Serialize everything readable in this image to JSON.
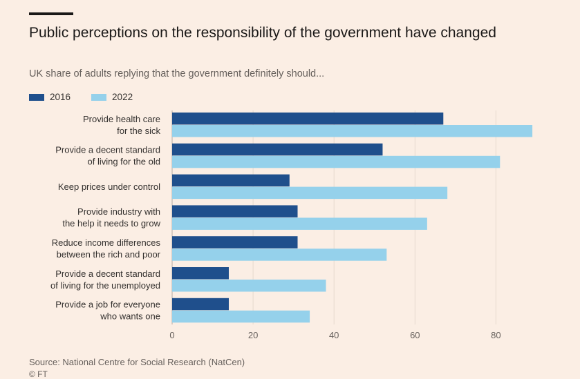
{
  "chart_data": {
    "type": "bar",
    "orientation": "horizontal",
    "title": "Public perceptions on the responsibility of the government have changed",
    "subtitle": "UK share of adults replying that the government definitely should...",
    "categories": [
      [
        "Provide health care",
        "for the sick"
      ],
      [
        "Provide a decent standard",
        "of living for the old"
      ],
      [
        "Keep prices under control"
      ],
      [
        "Provide industry with",
        "the help it needs to grow"
      ],
      [
        "Reduce income differences",
        "between the rich and poor"
      ],
      [
        "Provide a decent standard",
        "of living for the unemployed"
      ],
      [
        "Provide a job for everyone",
        "who wants one"
      ]
    ],
    "series": [
      {
        "name": "2016",
        "color": "#1f4f8c",
        "values": [
          67,
          52,
          29,
          31,
          31,
          14,
          14
        ]
      },
      {
        "name": "2022",
        "color": "#95d1eb",
        "values": [
          89,
          81,
          68,
          63,
          53,
          38,
          34
        ]
      }
    ],
    "xlim": [
      0,
      90
    ],
    "xticks": [
      0,
      20,
      40,
      60,
      80
    ],
    "xlabel": "",
    "ylabel": "",
    "grid": true,
    "legend_position": "top-left",
    "source": "Source: National Centre for Social Research (NatCen)",
    "credit": "© FT"
  }
}
